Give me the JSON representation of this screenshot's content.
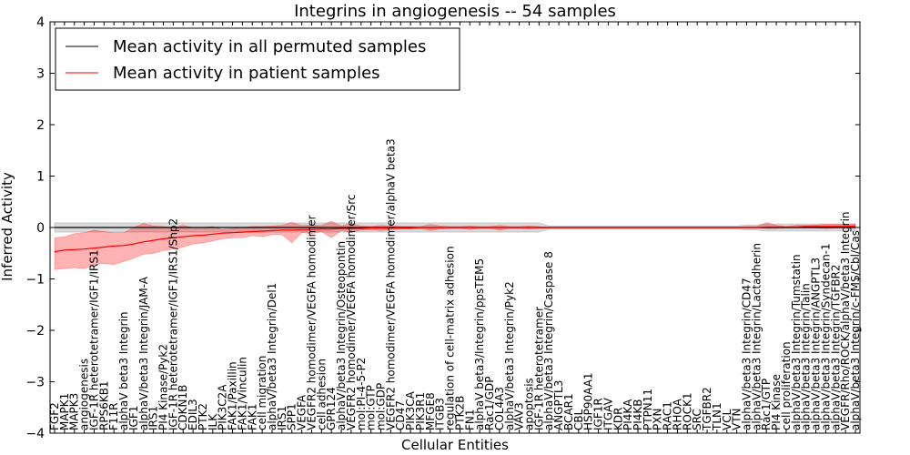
{
  "chart_data": {
    "type": "line",
    "title": "Integrins in angiogenesis -- 54 samples",
    "xlabel": "Cellular Entities",
    "ylabel": "Inferred Activity",
    "ylim": [
      -4,
      4
    ],
    "yticks": [
      -4,
      -3,
      -2,
      -1,
      0,
      1,
      2,
      3,
      4
    ],
    "ytick_labels": [
      "−4",
      "−3",
      "−2",
      "−1",
      "0",
      "1",
      "2",
      "3",
      "4"
    ],
    "grid": false,
    "legend": {
      "position": "top-left",
      "entries": [
        {
          "label": "Mean activity in all permuted samples",
          "color": "#000000"
        },
        {
          "label": "Mean activity in patient samples",
          "color": "#ff0000"
        }
      ]
    },
    "categories": [
      "FGF2",
      "MAPK1",
      "MAPK3",
      "angiogenesis",
      "IGF-1R heterotetramer/IGF1/IRS1",
      "RPS6KB1",
      "F11R",
      "alphaV beta3 Integrin",
      "IGF1",
      "alphaV/beta3 Integrin/JAM-A",
      "IRS1",
      "PI4 Kinase/Pyk2",
      "IGF-1R heterotetramer/IGF1/IRS1/Shp2",
      "CDKN1B",
      "EDIL3",
      "PTK2",
      "ILK",
      "PIK3C2A",
      "FAK1/Paxillin",
      "FAK1/Vinculin",
      "FAK1",
      "cell migration",
      "alphaV/beta3 Integrin/Del1",
      "IRS1",
      "SPP1",
      "VEGFA",
      "VEGFR2 homodimer/VEGFA homodimer",
      "cell adhesion",
      "GPR124",
      "alphaV/beta3 Integrin/Osteopontin",
      "VEGFR2 homodimer/VEGFA homodimer/Src",
      "mol:PI-4-5-P2",
      "mol:GTP",
      "mol:GDP",
      "VEGFR2 homodimer/VEGFA homodimer/alphaV beta3",
      "CD47",
      "PIK3CA",
      "PIK3R1",
      "MFGE8",
      "ITGB3",
      "regulation of cell-matrix adhesion",
      "PTK2B",
      "FN1",
      "alphaV beta3/Integrin/ppsTEM5",
      "Rac1/GDP",
      "COL4A3",
      "alphaV/beta3 Integrin/Pyk2",
      "VAV3",
      "apoptosis",
      "IGF-1R heterotetramer",
      "alphaV/beta3 Integrin/Caspase 8",
      "ANGPTL3",
      "BCAR1",
      "CBL",
      "HSP90AA1",
      "IGF1R",
      "ITGAV",
      "KDR",
      "PI4KA",
      "PI4KB",
      "PTPN11",
      "PXN",
      "RAC1",
      "RHOA",
      "ROCK1",
      "SRC",
      "TGFBR2",
      "TLN1",
      "VCL",
      "VTN",
      "alphaV/beta3 Integrin/CD47",
      "alphaV/beta3 Integrin/Lactadherin",
      "Rac1/GTP",
      "PI4 Kinase",
      "cell proliferation",
      "alphaV/beta3 Integrin/Tumstatin",
      "alphaV/beta3 Integrin/Talin",
      "alphaV/beta3 Integrin/ANGPTL3",
      "alphaV/beta3 Integrin/Syndecan-1",
      "alphaV/beta3 Integrin/TGFBR2",
      "VEGFR/Rho/ROCK/alphaV/beta3 Integrin",
      "alphaV/beta3 Integrin/c-FMS/Cbl/Cas"
    ],
    "series": [
      {
        "name": "Mean activity in all permuted samples",
        "color": "#000000",
        "values": [
          0.0,
          0.0,
          0.0,
          0.0,
          0.0,
          0.0,
          0.0,
          0.0,
          0.0,
          0.0,
          0.0,
          0.0,
          0.0,
          0.0,
          0.0,
          0.0,
          0.0,
          0.0,
          0.0,
          0.0,
          0.0,
          0.0,
          0.0,
          0.0,
          0.0,
          0.0,
          0.0,
          0.0,
          0.0,
          0.0,
          0.0,
          0.0,
          0.0,
          0.0,
          0.0,
          0.0,
          0.0,
          0.0,
          0.0,
          0.0,
          0.0,
          0.0,
          0.0,
          0.0,
          0.0,
          0.0,
          0.0,
          0.0,
          0.0,
          0.0,
          0.0,
          0.0,
          0.0,
          0.0,
          0.0,
          0.0,
          0.0,
          0.0,
          0.0,
          0.0,
          0.0,
          0.0,
          0.0,
          0.0,
          0.0,
          0.0,
          0.0,
          0.0,
          0.0,
          0.0,
          0.0,
          0.0,
          0.0,
          0.0,
          0.0,
          0.0,
          0.0,
          0.0,
          0.0,
          0.0,
          0.0,
          0.0
        ],
        "lower": [
          -0.09,
          -0.09,
          -0.09,
          -0.09,
          -0.09,
          -0.09,
          -0.09,
          -0.09,
          -0.09,
          -0.09,
          -0.09,
          -0.09,
          -0.09,
          -0.09,
          -0.09,
          -0.09,
          -0.09,
          -0.09,
          -0.09,
          -0.09,
          -0.09,
          -0.09,
          -0.09,
          -0.09,
          -0.09,
          -0.09,
          -0.09,
          -0.09,
          -0.09,
          -0.09,
          -0.09,
          -0.09,
          -0.09,
          -0.09,
          -0.09,
          -0.09,
          -0.09,
          -0.09,
          -0.09,
          -0.09,
          -0.09,
          -0.09,
          -0.09,
          -0.09,
          -0.09,
          -0.09,
          -0.09,
          -0.09,
          -0.09,
          -0.09,
          -0.03,
          -0.03,
          -0.03,
          -0.03,
          -0.03,
          -0.03,
          -0.03,
          -0.03,
          -0.03,
          -0.03,
          -0.03,
          -0.03,
          -0.03,
          -0.03,
          -0.03,
          -0.03,
          -0.03,
          -0.03,
          -0.03,
          -0.03,
          -0.05,
          -0.05,
          -0.07,
          -0.07,
          -0.07,
          -0.07,
          -0.07,
          -0.07,
          -0.07,
          -0.07,
          -0.07,
          -0.07
        ],
        "upper": [
          0.09,
          0.09,
          0.09,
          0.09,
          0.09,
          0.09,
          0.09,
          0.09,
          0.09,
          0.09,
          0.09,
          0.09,
          0.09,
          0.09,
          0.09,
          0.09,
          0.09,
          0.09,
          0.09,
          0.09,
          0.09,
          0.09,
          0.09,
          0.09,
          0.09,
          0.09,
          0.09,
          0.09,
          0.09,
          0.09,
          0.09,
          0.09,
          0.09,
          0.09,
          0.09,
          0.09,
          0.09,
          0.09,
          0.09,
          0.09,
          0.09,
          0.09,
          0.09,
          0.09,
          0.09,
          0.09,
          0.09,
          0.09,
          0.09,
          0.09,
          0.03,
          0.03,
          0.03,
          0.03,
          0.03,
          0.03,
          0.03,
          0.03,
          0.03,
          0.03,
          0.03,
          0.03,
          0.03,
          0.03,
          0.03,
          0.03,
          0.03,
          0.03,
          0.03,
          0.03,
          0.05,
          0.05,
          0.07,
          0.07,
          0.07,
          0.07,
          0.07,
          0.07,
          0.07,
          0.07,
          0.07,
          0.07
        ]
      },
      {
        "name": "Mean activity in patient samples",
        "color": "#ff0000",
        "values": [
          -0.47,
          -0.44,
          -0.43,
          -0.42,
          -0.4,
          -0.38,
          -0.36,
          -0.35,
          -0.32,
          -0.28,
          -0.25,
          -0.22,
          -0.2,
          -0.18,
          -0.16,
          -0.15,
          -0.13,
          -0.11,
          -0.1,
          -0.09,
          -0.08,
          -0.07,
          -0.06,
          -0.05,
          -0.05,
          -0.04,
          -0.04,
          -0.03,
          -0.03,
          -0.02,
          -0.02,
          -0.02,
          -0.01,
          -0.01,
          -0.01,
          -0.01,
          -0.01,
          0.0,
          0.0,
          0.0,
          0.0,
          0.0,
          0.0,
          0.0,
          0.0,
          0.0,
          0.0,
          0.0,
          0.0,
          0.0,
          0.0,
          0.0,
          0.0,
          0.0,
          0.0,
          0.0,
          0.0,
          0.0,
          0.0,
          0.0,
          0.0,
          0.0,
          0.0,
          0.0,
          0.0,
          0.0,
          0.0,
          0.0,
          0.0,
          0.0,
          0.0,
          0.0,
          0.01,
          0.01,
          0.01,
          0.01,
          0.02,
          0.02,
          0.02,
          0.02,
          0.02,
          0.03
        ],
        "lower": [
          -0.82,
          -0.8,
          -0.78,
          -0.8,
          -0.72,
          -0.7,
          -0.72,
          -0.66,
          -0.6,
          -0.52,
          -0.5,
          -0.45,
          -0.42,
          -0.38,
          -0.32,
          -0.3,
          -0.26,
          -0.22,
          -0.2,
          -0.2,
          -0.16,
          -0.18,
          -0.14,
          -0.14,
          -0.3,
          -0.1,
          -0.12,
          -0.08,
          -0.2,
          -0.06,
          -0.1,
          -0.05,
          -0.04,
          -0.06,
          -0.04,
          -0.03,
          -0.03,
          -0.02,
          -0.06,
          -0.03,
          -0.02,
          -0.02,
          -0.04,
          -0.02,
          -0.02,
          -0.05,
          -0.02,
          -0.02,
          -0.03,
          -0.02,
          -0.01,
          -0.01,
          -0.01,
          -0.01,
          -0.01,
          -0.01,
          -0.01,
          -0.01,
          -0.01,
          -0.01,
          -0.01,
          -0.01,
          -0.01,
          -0.01,
          -0.01,
          -0.01,
          -0.01,
          -0.01,
          -0.01,
          -0.01,
          -0.01,
          -0.01,
          -0.02,
          -0.02,
          -0.01,
          -0.01,
          -0.01,
          -0.01,
          -0.02,
          -0.01,
          -0.01,
          -0.01
        ],
        "upper": [
          -0.2,
          -0.18,
          -0.12,
          -0.1,
          -0.05,
          -0.08,
          -0.1,
          -0.1,
          0.0,
          0.08,
          0.03,
          0.02,
          0.0,
          0.04,
          0.0,
          0.0,
          0.02,
          -0.04,
          -0.02,
          0.0,
          0.02,
          0.02,
          0.03,
          0.04,
          0.1,
          0.04,
          0.05,
          0.04,
          0.12,
          0.03,
          0.08,
          0.03,
          0.02,
          0.04,
          0.03,
          0.02,
          0.02,
          0.02,
          0.06,
          0.03,
          0.02,
          0.02,
          0.03,
          0.02,
          0.02,
          0.04,
          0.02,
          0.02,
          0.03,
          0.02,
          0.01,
          0.01,
          0.01,
          0.01,
          0.01,
          0.01,
          0.01,
          0.01,
          0.01,
          0.01,
          0.01,
          0.01,
          0.01,
          0.01,
          0.01,
          0.01,
          0.01,
          0.01,
          0.01,
          0.01,
          0.02,
          0.02,
          0.1,
          0.04,
          0.02,
          0.04,
          0.04,
          0.05,
          0.06,
          0.06,
          0.06,
          0.07
        ]
      }
    ]
  }
}
